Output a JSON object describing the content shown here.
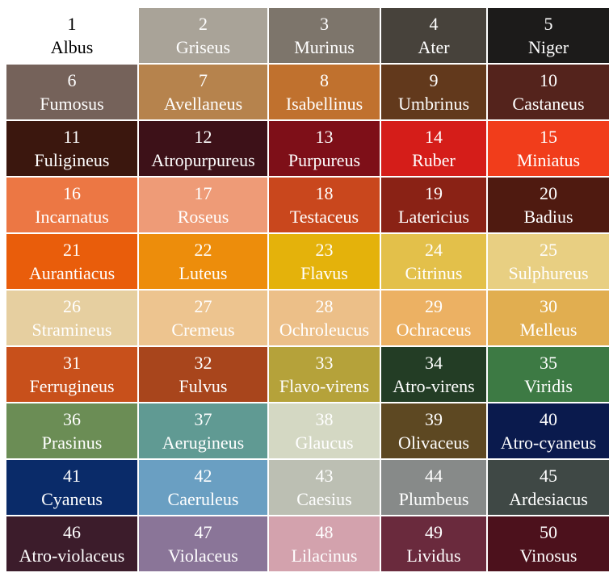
{
  "swatches": [
    {
      "num": "1",
      "name": "Albus",
      "bg": "#ffffff",
      "fg": "#000000"
    },
    {
      "num": "2",
      "name": "Griseus",
      "bg": "#a9a398",
      "fg": "#ffffff"
    },
    {
      "num": "3",
      "name": "Murinus",
      "bg": "#7d756b",
      "fg": "#ffffff"
    },
    {
      "num": "4",
      "name": "Ater",
      "bg": "#47423b",
      "fg": "#ffffff"
    },
    {
      "num": "5",
      "name": "Niger",
      "bg": "#1c1b1a",
      "fg": "#ffffff"
    },
    {
      "num": "6",
      "name": "Fumosus",
      "bg": "#75625a",
      "fg": "#ffffff"
    },
    {
      "num": "7",
      "name": "Avellaneus",
      "bg": "#b6834d",
      "fg": "#ffffff"
    },
    {
      "num": "8",
      "name": "Isabellinus",
      "bg": "#c0712e",
      "fg": "#ffffff"
    },
    {
      "num": "9",
      "name": "Umbrinus",
      "bg": "#62391c",
      "fg": "#ffffff"
    },
    {
      "num": "10",
      "name": "Castaneus",
      "bg": "#54231c",
      "fg": "#ffffff"
    },
    {
      "num": "11",
      "name": "Fuligineus",
      "bg": "#3b170e",
      "fg": "#ffffff"
    },
    {
      "num": "12",
      "name": "Atropurpureus",
      "bg": "#3d1118",
      "fg": "#ffffff"
    },
    {
      "num": "13",
      "name": "Purpureus",
      "bg": "#7e0f18",
      "fg": "#ffffff"
    },
    {
      "num": "14",
      "name": "Ruber",
      "bg": "#d51d19",
      "fg": "#ffffff"
    },
    {
      "num": "15",
      "name": "Miniatus",
      "bg": "#f13d1b",
      "fg": "#ffffff"
    },
    {
      "num": "16",
      "name": "Incarnatus",
      "bg": "#ec7744",
      "fg": "#ffffff"
    },
    {
      "num": "17",
      "name": "Roseus",
      "bg": "#ee9b77",
      "fg": "#ffffff"
    },
    {
      "num": "18",
      "name": "Testaceus",
      "bg": "#c9471d",
      "fg": "#ffffff"
    },
    {
      "num": "19",
      "name": "Latericius",
      "bg": "#8a2215",
      "fg": "#ffffff"
    },
    {
      "num": "20",
      "name": "Badius",
      "bg": "#4f1a10",
      "fg": "#ffffff"
    },
    {
      "num": "21",
      "name": "Aurantiacus",
      "bg": "#e95d0b",
      "fg": "#ffffff"
    },
    {
      "num": "22",
      "name": "Luteus",
      "bg": "#ed8d0b",
      "fg": "#ffffff"
    },
    {
      "num": "23",
      "name": "Flavus",
      "bg": "#e4b20b",
      "fg": "#ffffff"
    },
    {
      "num": "24",
      "name": "Citrinus",
      "bg": "#e3c04a",
      "fg": "#ffffff"
    },
    {
      "num": "25",
      "name": "Sulphureus",
      "bg": "#e8cf82",
      "fg": "#ffffff"
    },
    {
      "num": "26",
      "name": "Stramineus",
      "bg": "#e6cfa0",
      "fg": "#ffffff"
    },
    {
      "num": "27",
      "name": "Cremeus",
      "bg": "#edc48f",
      "fg": "#ffffff"
    },
    {
      "num": "28",
      "name": "Ochroleucus",
      "bg": "#ecbf88",
      "fg": "#ffffff"
    },
    {
      "num": "29",
      "name": "Ochraceus",
      "bg": "#ecb163",
      "fg": "#ffffff"
    },
    {
      "num": "30",
      "name": "Melleus",
      "bg": "#e1ae50",
      "fg": "#ffffff"
    },
    {
      "num": "31",
      "name": "Ferrugineus",
      "bg": "#c8501b",
      "fg": "#ffffff"
    },
    {
      "num": "32",
      "name": "Fulvus",
      "bg": "#a8451c",
      "fg": "#ffffff"
    },
    {
      "num": "33",
      "name": "Flavo-virens",
      "bg": "#b5a23a",
      "fg": "#ffffff"
    },
    {
      "num": "34",
      "name": "Atro-virens",
      "bg": "#233d25",
      "fg": "#ffffff"
    },
    {
      "num": "35",
      "name": "Viridis",
      "bg": "#3d7a44",
      "fg": "#ffffff"
    },
    {
      "num": "36",
      "name": "Prasinus",
      "bg": "#6b8d55",
      "fg": "#ffffff"
    },
    {
      "num": "37",
      "name": "Aerugineus",
      "bg": "#609a93",
      "fg": "#ffffff"
    },
    {
      "num": "38",
      "name": "Glaucus",
      "bg": "#d4d8c3",
      "fg": "#ffffff"
    },
    {
      "num": "39",
      "name": "Olivaceus",
      "bg": "#5d4822",
      "fg": "#ffffff"
    },
    {
      "num": "40",
      "name": "Atro-cyaneus",
      "bg": "#0a1a4d",
      "fg": "#ffffff"
    },
    {
      "num": "41",
      "name": "Cyaneus",
      "bg": "#0a2b69",
      "fg": "#ffffff"
    },
    {
      "num": "42",
      "name": "Caeruleus",
      "bg": "#6a9fc2",
      "fg": "#ffffff"
    },
    {
      "num": "43",
      "name": "Caesius",
      "bg": "#bcbfb3",
      "fg": "#ffffff"
    },
    {
      "num": "44",
      "name": "Plumbeus",
      "bg": "#878a89",
      "fg": "#ffffff"
    },
    {
      "num": "45",
      "name": "Ardesiacus",
      "bg": "#3f4845",
      "fg": "#ffffff"
    },
    {
      "num": "46",
      "name": "Atro-violaceus",
      "bg": "#3c1c2b",
      "fg": "#ffffff"
    },
    {
      "num": "47",
      "name": "Violaceus",
      "bg": "#8a7598",
      "fg": "#ffffff"
    },
    {
      "num": "48",
      "name": "Lilacinus",
      "bg": "#d3a2ad",
      "fg": "#ffffff"
    },
    {
      "num": "49",
      "name": "Lividus",
      "bg": "#6a2a3d",
      "fg": "#ffffff"
    },
    {
      "num": "50",
      "name": "Vinosus",
      "bg": "#4c111c",
      "fg": "#ffffff"
    }
  ]
}
